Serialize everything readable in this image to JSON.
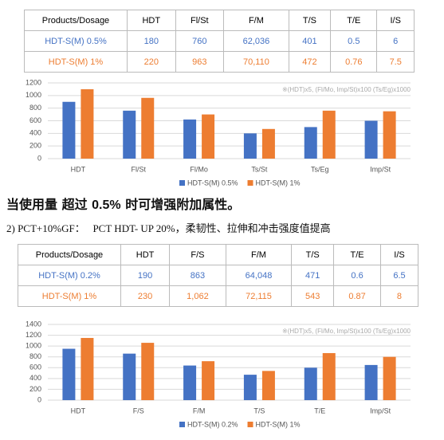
{
  "tables": [
    {
      "header": [
        "Products/Dosage",
        "HDT",
        "Fl/St",
        "F/M",
        "T/S",
        "T/E",
        "I/S"
      ],
      "rows": [
        [
          "HDT-S(M) 0.5%",
          "180",
          "760",
          "62,036",
          "401",
          "0.5",
          "6"
        ],
        [
          "HDT-S(M)  1%",
          "220",
          "963",
          "70,110",
          "472",
          "0.76",
          "7.5"
        ]
      ]
    },
    {
      "header": [
        "Products/Dosage",
        "HDT",
        "F/S",
        "F/M",
        "T/S",
        "T/E",
        "I/S"
      ],
      "rows": [
        [
          "HDT-S(M) 0.2%",
          "190",
          "863",
          "64,048",
          "471",
          "0.6",
          "6.5"
        ],
        [
          "HDT-S(M)  1%",
          "230",
          "1,062",
          "72,115",
          "543",
          "0.87",
          "8"
        ]
      ]
    }
  ],
  "text": {
    "line1": [
      "当使用量 超过 ",
      "0.5%",
      " 时可增强附加属性。"
    ],
    "line2": "2) PCT+10%GF：   PCT HDT- UP 20%，柔韧性、拉伸和冲击强度值提高"
  },
  "chart_data": [
    {
      "type": "bar",
      "annotation": "※(HDT)x5, (Fl/Mo, Imp/St)x100 (Ts/Eg)x1000",
      "categories": [
        "HDT",
        "Fl/St",
        "Fl/Mo",
        "Ts/St",
        "Ts/Eg",
        "Imp/St"
      ],
      "series": [
        {
          "name": "HDT-S(M) 0.5%",
          "color": "#4472c4",
          "values": [
            900,
            760,
            620,
            400,
            500,
            600
          ]
        },
        {
          "name": "HDT-S(M) 1%",
          "color": "#ed7d31",
          "values": [
            1100,
            963,
            700,
            470,
            760,
            750
          ]
        }
      ],
      "ylim": [
        0,
        1200
      ],
      "yticks": [
        0,
        200,
        400,
        600,
        800,
        1000,
        1200
      ],
      "grid": true
    },
    {
      "type": "bar",
      "annotation": "※(HDT)x5, (Fl/Mo, Imp/St)x100 (Ts/Eg)x1000",
      "categories": [
        "HDT",
        "F/S",
        "F/M",
        "T/S",
        "T/E",
        "Imp/St"
      ],
      "series": [
        {
          "name": "HDT-S(M) 0.2%",
          "color": "#4472c4",
          "values": [
            950,
            860,
            640,
            470,
            600,
            650
          ]
        },
        {
          "name": "HDT-S(M) 1%",
          "color": "#ed7d31",
          "values": [
            1150,
            1060,
            720,
            540,
            870,
            800
          ]
        }
      ],
      "ylim": [
        0,
        1400
      ],
      "yticks": [
        0,
        200,
        400,
        600,
        800,
        1000,
        1200,
        1400
      ],
      "grid": true
    }
  ]
}
